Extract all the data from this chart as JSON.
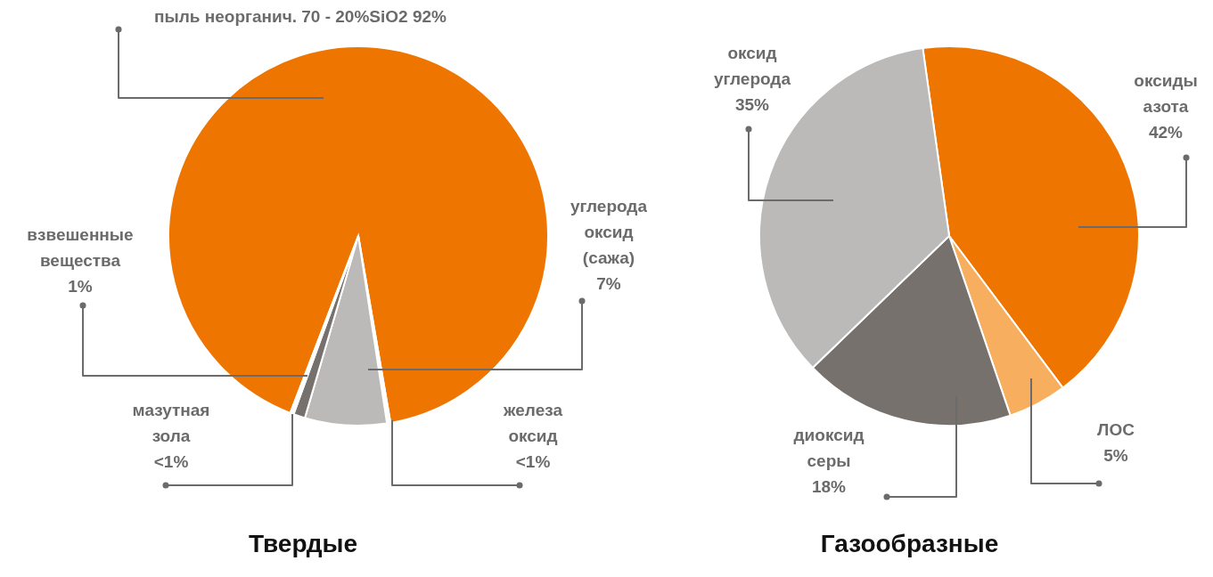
{
  "chart_data": [
    {
      "type": "pie",
      "title": "Твердые",
      "categories": [
        "пыль неорганич. 70 - 20%SiO2",
        "железа оксид",
        "углерода оксид (сажа)",
        "взвешенные вещества",
        "мазутная зола"
      ],
      "values": [
        92,
        0.3,
        7,
        1,
        0.3
      ],
      "colors": [
        "#ee7600",
        "#ffffff",
        "#bbbab8",
        "#77716e",
        "#ffffff"
      ],
      "value_labels": [
        "92%",
        "<1%",
        "7%",
        "1%",
        "<1%"
      ]
    },
    {
      "type": "pie",
      "title": "Газообразные",
      "categories": [
        "оксиды азота",
        "ЛОС",
        "диоксид серы",
        "оксид углерода"
      ],
      "values": [
        42,
        5,
        18,
        35
      ],
      "colors": [
        "#ee7600",
        "#f7ae5f",
        "#77716e",
        "#bbbab8"
      ],
      "value_labels": [
        "42%",
        "5%",
        "18%",
        "35%"
      ]
    }
  ]
}
